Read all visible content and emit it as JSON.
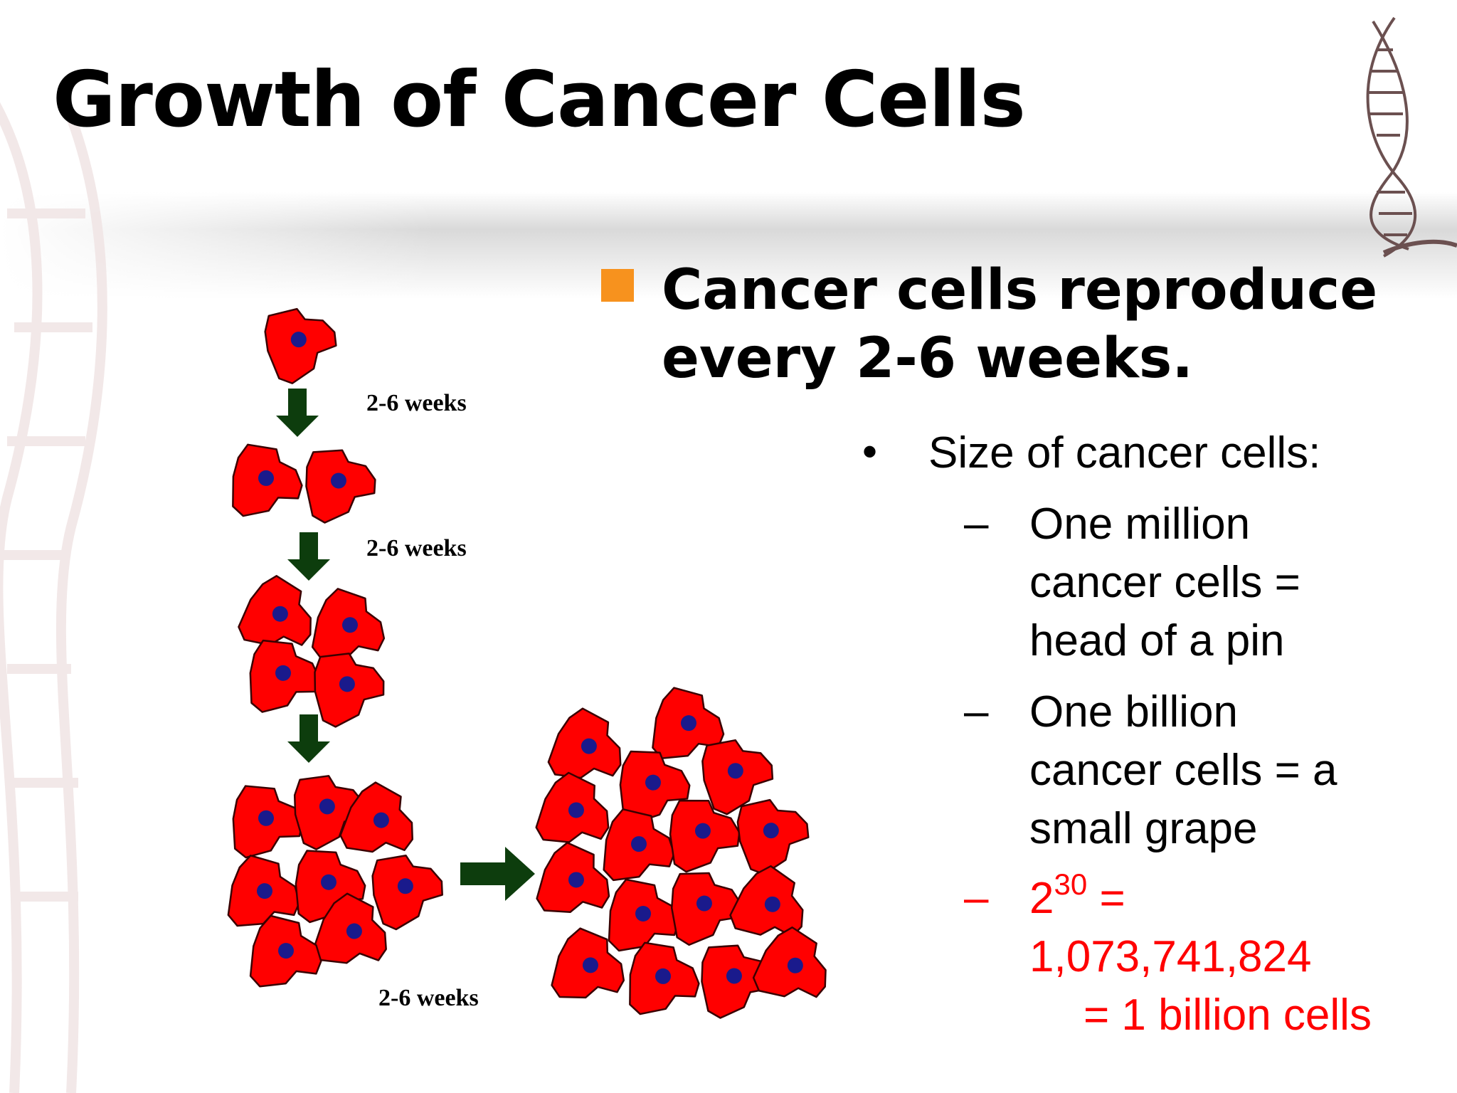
{
  "slide": {
    "title": "Growth of Cancer Cells"
  },
  "main_point": {
    "text": "Cancer cells reproduce every 2-6 weeks.",
    "marker_color": "#f7921e"
  },
  "details": {
    "heading": "Size of cancer cells:",
    "items": [
      {
        "text": "One million cancer cells = head of a pin"
      },
      {
        "text": "One billion cancer cells = a small grape"
      }
    ],
    "highlight": {
      "base": "2",
      "exponent": "30",
      "equals": "=",
      "value": "1,073,741,824",
      "result": "= 1 billion cells",
      "color": "#ff0000"
    }
  },
  "diagram": {
    "interval_labels": [
      "2-6 weeks",
      "2-6 weeks",
      "2-6 weeks"
    ],
    "cell_counts": [
      1,
      2,
      4,
      8,
      16
    ],
    "cell_color": "#ff0000",
    "nucleus_color": "#1a1a8c",
    "arrow_color": "#0d3d0d"
  }
}
